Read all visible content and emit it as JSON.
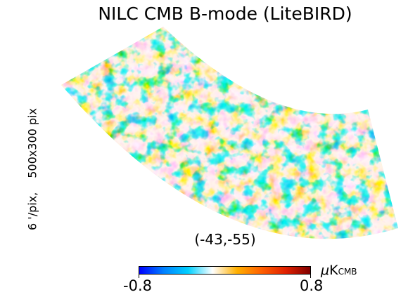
{
  "figure": {
    "title": "NILC CMB B-mode (LiteBIRD)",
    "resolution_label": "6 '/pix,",
    "size_label": "500x300 pix",
    "center_coords": "(-43,-55)"
  },
  "colorbar": {
    "min_label": "-0.8",
    "max_label": "0.8",
    "unit_prefix": "μ",
    "unit_main": "K",
    "unit_sub": "CMB",
    "stops": [
      "#0000ff",
      "#0080ff",
      "#00d0ff",
      "#ffffff",
      "#ffb000",
      "#ff6000",
      "#e02000",
      "#800000"
    ]
  },
  "map_colors": {
    "cold": "#00bfff",
    "neutral": "#fff5e6",
    "warm": "#ffb000"
  }
}
